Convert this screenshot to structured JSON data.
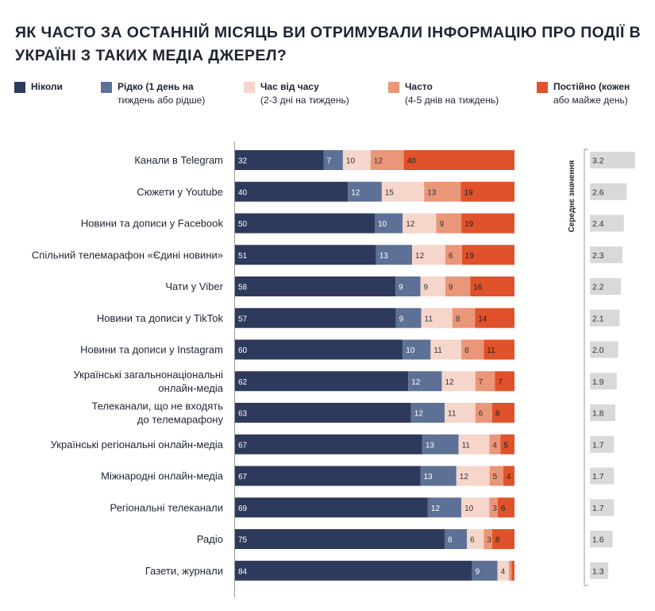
{
  "title": "ЯК ЧАСТО ЗА ОСТАННІЙ МІСЯЦЬ ВИ ОТРИМУВАЛИ ІНФОРМАЦІЮ ПРО ПОДІЇ В УКРАЇНІ З ТАКИХ МЕДІА ДЖЕРЕЛ?",
  "legend": [
    {
      "line1": "Ніколи",
      "line2": "",
      "color": "#2e3a5c"
    },
    {
      "line1": "Рідко (1 день на",
      "line2": "тиждень або рідше)",
      "color": "#5d7196"
    },
    {
      "line1": "Час від часу",
      "line2": "(2-3 дні на тиждень)",
      "color": "#f6d6cb"
    },
    {
      "line1": "Часто",
      "line2": "(4-5 днів на тиждень)",
      "color": "#ea9679"
    },
    {
      "line1": "Постійно (кожен",
      "line2": "або майже день)",
      "color": "#e0522b"
    }
  ],
  "avg_caption": "Середнє значення",
  "chart_data": {
    "type": "bar",
    "orientation": "horizontal",
    "stacked": true,
    "title": "ЯК ЧАСТО ЗА ОСТАННІЙ МІСЯЦЬ ВИ ОТРИМУВАЛИ ІНФОРМАЦІЮ ПРО ПОДІЇ В УКРАЇНІ З ТАКИХ МЕДІА ДЖЕРЕЛ?",
    "categories": [
      "Канали в Telegram",
      "Сюжети у Youtube",
      "Новини та дописи у Facebook",
      "Спільний телемарафон «Єдині новини»",
      "Чати у Viber",
      "Новини та дописи у TikTok",
      "Новини та дописи у Instagram",
      "Українські загальнонаціональні\nонлайн-медіа",
      "Телеканали, що не входять\nдо телемарафону",
      "Українські регіональні онлайн-медіа",
      "Міжнародні онлайн-медіа",
      "Регіональні телеканали",
      "Радіо",
      "Газети, журнали"
    ],
    "series": [
      {
        "name": "Ніколи",
        "values": [
          32,
          40,
          50,
          51,
          58,
          57,
          60,
          62,
          63,
          67,
          67,
          69,
          75,
          84
        ]
      },
      {
        "name": "Рідко (1 день на тиждень або рідше)",
        "values": [
          7,
          12,
          10,
          13,
          9,
          9,
          10,
          12,
          12,
          13,
          13,
          12,
          8,
          9
        ]
      },
      {
        "name": "Час від часу (2-3 дні на тиждень)",
        "values": [
          10,
          15,
          12,
          12,
          9,
          11,
          11,
          12,
          11,
          11,
          12,
          10,
          6,
          4
        ]
      },
      {
        "name": "Часто (4-5 днів на тиждень)",
        "values": [
          12,
          13,
          9,
          6,
          9,
          8,
          8,
          7,
          6,
          4,
          5,
          3,
          3,
          1
        ]
      },
      {
        "name": "Постійно (кожен або майже день)",
        "values": [
          40,
          19,
          19,
          19,
          16,
          14,
          11,
          7,
          8,
          5,
          4,
          6,
          8,
          1
        ]
      }
    ],
    "value_labels": [
      [
        "32",
        "7",
        "10",
        "12",
        "40"
      ],
      [
        "40",
        "12",
        "15",
        "13",
        "19"
      ],
      [
        "50",
        "10",
        "12",
        "9",
        "19"
      ],
      [
        "51",
        "13",
        "12",
        "6",
        "19"
      ],
      [
        "58",
        "9",
        "9",
        "9",
        "16"
      ],
      [
        "57",
        "9",
        "11",
        "8",
        "14"
      ],
      [
        "60",
        "10",
        "11",
        "8",
        "11"
      ],
      [
        "62",
        "12",
        "12",
        "7",
        "7"
      ],
      [
        "63",
        "12",
        "11",
        "6",
        "8"
      ],
      [
        "67",
        "13",
        "11",
        "4",
        "5"
      ],
      [
        "67",
        "13",
        "12",
        "5",
        "4"
      ],
      [
        "69",
        "12",
        "10",
        "3",
        "6"
      ],
      [
        "75",
        "8",
        "6",
        "3",
        "8"
      ],
      [
        "84",
        "9",
        "4",
        "",
        ""
      ]
    ],
    "averages": {
      "label": "Середнє значення",
      "values": [
        3.2,
        2.6,
        2.4,
        2.3,
        2.2,
        2.1,
        2.0,
        1.9,
        1.8,
        1.7,
        1.7,
        1.7,
        1.6,
        1.3
      ],
      "labels": [
        "3.2",
        "2.6",
        "2.4",
        "2.3",
        "2.2",
        "2.1",
        "2.0",
        "1.9",
        "1.8",
        "1.7",
        "1.7",
        "1.7",
        "1.6",
        "1.3"
      ],
      "color": "#d9d9d9"
    },
    "legend_position": "top",
    "grid": false
  }
}
